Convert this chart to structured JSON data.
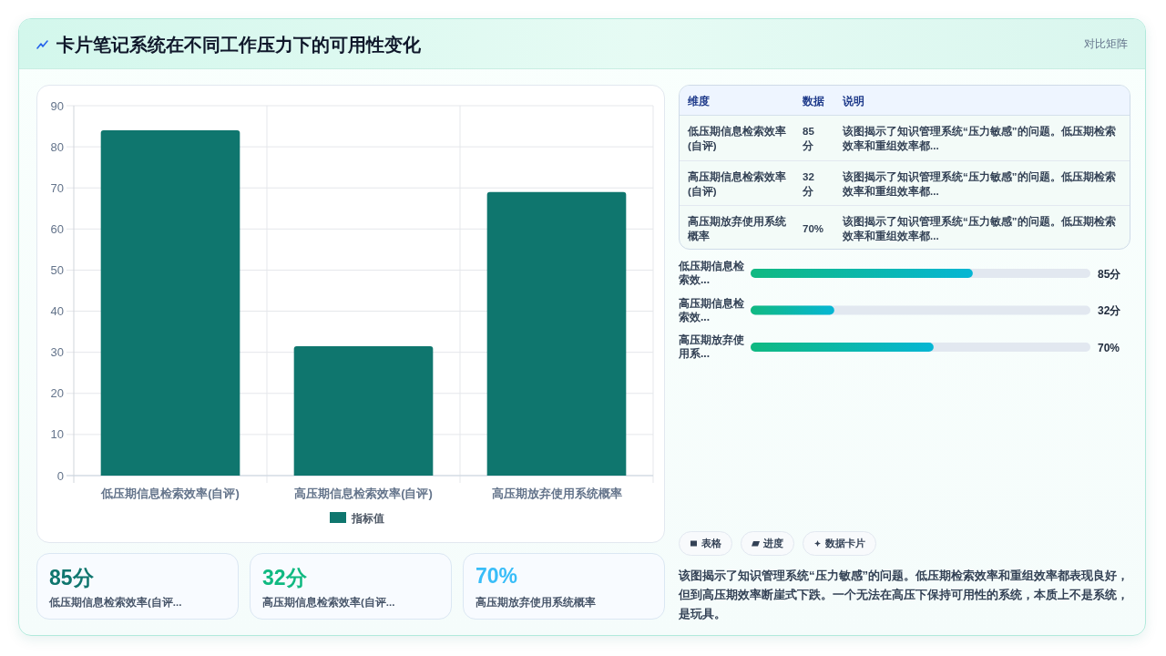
{
  "chart_data": [
    {
      "type": "bar",
      "title": "卡片笔记系统在不同工作压力下的可用性变化",
      "annotations": [
        "对比矩阵"
      ],
      "categories": [
        "低压期信息检索效率(自评)",
        "高压期信息检索效率(自评)",
        "高压期放弃使用系统概率"
      ],
      "series": [
        {
          "name": "指标值",
          "color": "#0f766e",
          "values": [
            84,
            31.5,
            69
          ]
        }
      ],
      "ylim": [
        0,
        90
      ],
      "yticks": [
        0,
        10,
        20,
        30,
        40,
        50,
        60,
        70,
        80,
        90
      ],
      "grid": true,
      "legend": "bottom"
    },
    {
      "type": "other",
      "annotations": [
        "维度",
        "数据",
        "说明",
        "低压期信息检索效率(自评)",
        "85分",
        "该图揭示了知识管理系统“压力敏感”的问题。低压期检索效率和重组效率都...",
        "高压期信息检索效率(自评)",
        "32分",
        "该图揭示了知识管理系统“压力敏感”的问题。低压期检索效率和重组效率都...",
        "高压期放弃使用系统概率",
        "70%",
        "该图揭示了知识管理系统“压力敏感”的问题。低压期检索效率和重组效率都..."
      ]
    },
    {
      "type": "bar",
      "orientation": "horizontal",
      "categories": [
        "低压期信息检索效...",
        "高压期信息检索效...",
        "高压期放弃使用系..."
      ],
      "values": [
        85,
        32,
        70
      ],
      "value_labels": [
        "85分",
        "32分",
        "70%"
      ],
      "color": "#10b981",
      "xlim": [
        0,
        130
      ],
      "tick_labels": "y"
    },
    {
      "type": "other",
      "annotations": [
        "85分",
        "低压期信息检索效率(自评...",
        "32分",
        "高压期信息检索效率(自评...",
        "70%",
        "高压期放弃使用系统概率"
      ],
      "colors": [
        "#0f766e",
        "#10b981",
        "#38bdf8"
      ]
    },
    {
      "type": "other",
      "annotations": [
        "表格",
        "进度",
        "数据卡片",
        "该图揭示了知识管理系统“压力敏感”的问题。低压期检索效率和重组效率都表现良好，但到高压期效率断崖式下跌。一个无法在高压下保持可用性的系统，本质上不是系统，是玩具。"
      ]
    }
  ]
}
